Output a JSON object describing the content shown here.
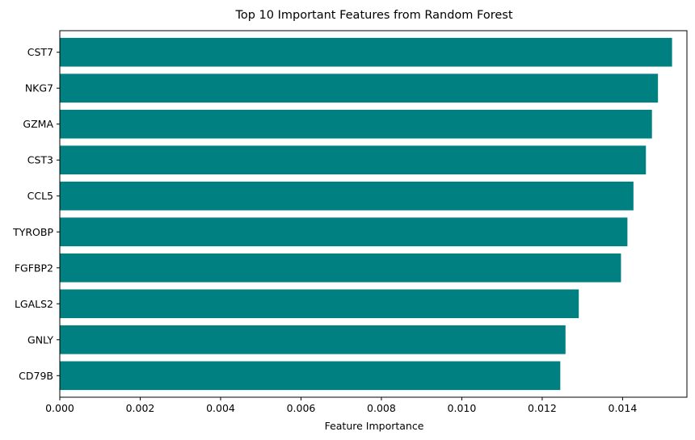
{
  "chart_data": {
    "type": "bar",
    "orientation": "horizontal",
    "title": "Top 10 Important Features from Random Forest",
    "xlabel": "Feature Importance",
    "ylabel": "",
    "categories": [
      "CST7",
      "NKG7",
      "GZMA",
      "CST3",
      "CCL5",
      "TYROBP",
      "FGFBP2",
      "LGALS2",
      "GNLY",
      "CD79B"
    ],
    "values": [
      0.01523,
      0.01488,
      0.01473,
      0.01458,
      0.01427,
      0.01412,
      0.01396,
      0.01291,
      0.01258,
      0.01245
    ],
    "xlim": [
      0,
      0.0156
    ],
    "x_ticks": [
      0.0,
      0.002,
      0.004,
      0.006,
      0.008,
      0.01,
      0.012,
      0.014
    ],
    "x_tick_labels": [
      "0.000",
      "0.002",
      "0.004",
      "0.006",
      "0.008",
      "0.010",
      "0.012",
      "0.014"
    ],
    "bar_color": "#008080",
    "grid": false,
    "legend": "none"
  }
}
